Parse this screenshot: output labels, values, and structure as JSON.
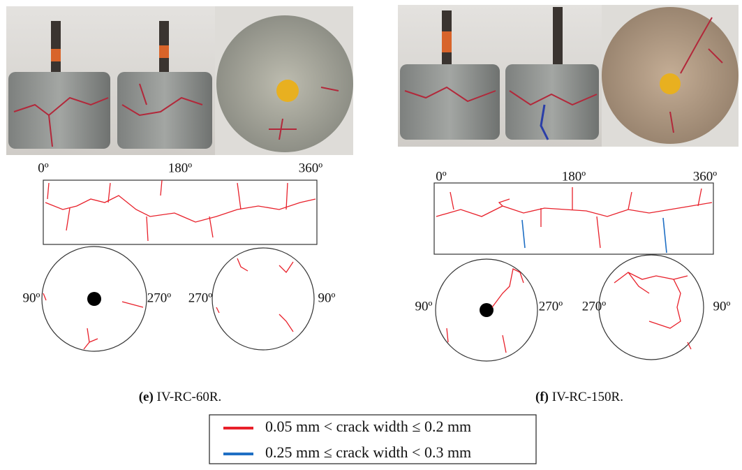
{
  "panels": [
    {
      "label": "(e)",
      "caption": "IV-RC-60R.",
      "unroll_labels": [
        "0º",
        "180º",
        "360º"
      ],
      "circle_labels": [
        "90º",
        "270º",
        "270º",
        "90º"
      ]
    },
    {
      "label": "(f)",
      "caption": "IV-RC-150R.",
      "unroll_labels": [
        "0º",
        "180º",
        "360º"
      ],
      "circle_labels": [
        "90º",
        "270º",
        "270º",
        "90º"
      ]
    }
  ],
  "legend": [
    {
      "text": "0.05 mm < crack width ≤ 0.2 mm",
      "color": "#e8202a"
    },
    {
      "text": "0.25 mm ≤ crack width < 0.3 mm",
      "color": "#1f6fc4"
    }
  ]
}
